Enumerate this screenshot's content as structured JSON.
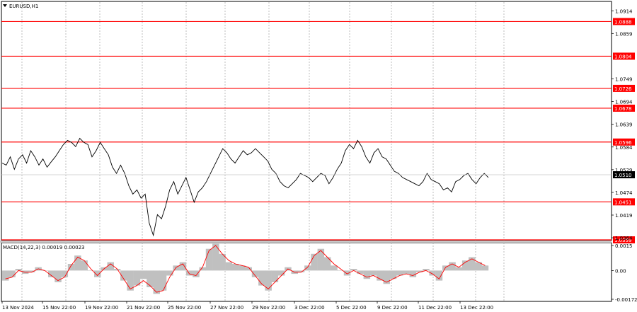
{
  "window": {
    "symbol_title": "EURUSD,H1",
    "menu_icon": "triangle-down-icon"
  },
  "colors": {
    "level_line": "#ff0000",
    "price_line": "#000000",
    "grid": "#a0a0a0",
    "macd_hist": "#c0c0c0",
    "macd_signal": "#ff0000",
    "current_price_bg": "#000000"
  },
  "main_axis": {
    "ticks": [
      "1.0914",
      "1.0859",
      "1.0749",
      "1.0694",
      "1.0639",
      "1.0584",
      "1.0529",
      "1.0474",
      "1.0419",
      "1.0364"
    ],
    "current_price": "1.0510"
  },
  "levels": [
    "1.0888",
    "1.0804",
    "1.0726",
    "1.0678",
    "1.0596",
    "1.0451",
    "1.0359"
  ],
  "macd": {
    "title": "MACD(14,22,3) 0.00019 0.00023",
    "ticks": [
      "0.0015",
      "0.00",
      "-0.00172"
    ]
  },
  "time_axis": [
    "13 Nov 2024",
    "15 Nov 22:00",
    "19 Nov 22:00",
    "21 Nov 22:00",
    "25 Nov 22:00",
    "27 Nov 22:00",
    "29 Nov 22:00",
    "3 Dec 22:00",
    "5 Dec 22:00",
    "9 Dec 22:00",
    "11 Dec 22:00",
    "13 Dec 22:00"
  ],
  "chart_data": {
    "type": "line",
    "title": "EURUSD,H1",
    "price_ylim": [
      1.0359,
      1.0935
    ],
    "price_series": [
      {
        "values": [
          1.0545,
          1.054,
          1.056,
          1.053,
          1.0555,
          1.0565,
          1.0545,
          1.0575,
          1.056,
          1.054,
          1.0555,
          1.0535,
          1.0548,
          1.056,
          1.0575,
          1.059,
          1.06,
          1.0595,
          1.0585,
          1.0605,
          1.0595,
          1.059,
          1.056,
          1.0575,
          1.0595,
          1.058,
          1.0565,
          1.0535,
          1.052,
          1.054,
          1.052,
          1.049,
          1.047,
          1.048,
          1.046,
          1.047,
          1.04,
          1.037,
          1.042,
          1.041,
          1.044,
          1.048,
          1.05,
          1.047,
          1.049,
          1.051,
          1.048,
          1.045,
          1.0475,
          1.0485,
          1.05,
          1.052,
          1.054,
          1.056,
          1.058,
          1.057,
          1.0555,
          1.0545,
          1.056,
          1.0575,
          1.0565,
          1.057,
          1.058,
          1.057,
          1.056,
          1.055,
          1.053,
          1.052,
          1.05,
          1.049,
          1.0485,
          1.0495,
          1.0505,
          1.052,
          1.0515,
          1.051,
          1.05,
          1.051,
          1.052,
          1.0515,
          1.0495,
          1.051,
          1.053,
          1.0545,
          1.0575,
          1.059,
          1.058,
          1.06,
          1.0585,
          1.056,
          1.0545,
          1.057,
          1.058,
          1.056,
          1.0555,
          1.054,
          1.0525,
          1.052,
          1.051,
          1.0505,
          1.05,
          1.0495,
          1.049,
          1.05,
          1.052,
          1.0505,
          1.05,
          1.0495,
          1.048,
          1.0485,
          1.0475,
          1.05,
          1.0505,
          1.0515,
          1.052,
          1.0505,
          1.0495,
          1.051,
          1.052,
          1.051
        ]
      }
    ],
    "macd_ylim": [
      -0.00172,
      0.0015
    ],
    "macd_hist": [
      -0.0006,
      -0.0004,
      0.0001,
      -0.0002,
      -0.0001,
      0.0002,
      0.0,
      -0.0004,
      -0.0007,
      -0.0004,
      0.0004,
      0.0009,
      0.0006,
      0.0,
      -0.0004,
      0.0002,
      0.0005,
      0.0001,
      -0.0006,
      -0.0012,
      -0.0009,
      -0.0005,
      -0.001,
      -0.0014,
      -0.0012,
      -0.0003,
      0.0003,
      0.0005,
      -0.0003,
      -0.0004,
      0.0002,
      0.0013,
      0.0016,
      0.001,
      0.0005,
      0.0004,
      0.0003,
      0.0002,
      -0.0004,
      -0.0009,
      -0.0012,
      -0.0007,
      -0.0003,
      0.0002,
      -0.0002,
      -0.0001,
      0.0003,
      0.001,
      0.0013,
      0.0008,
      0.0003,
      0.0,
      -0.0003,
      0.0001,
      -0.0002,
      -0.0005,
      -0.0003,
      -0.0006,
      -0.0008,
      -0.0005,
      -0.0003,
      -0.0002,
      -0.0004,
      -0.0001,
      0.0001,
      -0.0003,
      -0.0006,
      0.0003,
      0.0005,
      0.0002,
      0.0006,
      0.0008,
      0.0005,
      0.0003
    ],
    "macd_signal": [
      -0.0005,
      -0.0004,
      0.0,
      -0.0001,
      -0.0001,
      0.0001,
      0.0,
      -0.0003,
      -0.0006,
      -0.0004,
      0.0003,
      0.0008,
      0.0006,
      0.0001,
      -0.0003,
      0.0001,
      0.0004,
      0.0001,
      -0.0005,
      -0.0011,
      -0.0009,
      -0.0006,
      -0.0009,
      -0.0013,
      -0.0012,
      -0.0004,
      0.0002,
      0.0004,
      -0.0002,
      -0.0003,
      0.0002,
      0.0012,
      0.0015,
      0.001,
      0.0006,
      0.0004,
      0.0003,
      0.0002,
      -0.0003,
      -0.0008,
      -0.0011,
      -0.0007,
      -0.0003,
      0.0001,
      -0.0001,
      -0.0001,
      0.0002,
      0.0009,
      0.0012,
      0.0008,
      0.0004,
      0.0001,
      -0.0002,
      0.0,
      -0.0002,
      -0.0004,
      -0.0003,
      -0.0005,
      -0.0007,
      -0.0005,
      -0.0003,
      -0.0002,
      -0.0003,
      -0.0001,
      0.0,
      -0.0002,
      -0.0005,
      0.0002,
      0.0004,
      0.0002,
      0.0005,
      0.0007,
      0.0005,
      0.0003
    ]
  }
}
